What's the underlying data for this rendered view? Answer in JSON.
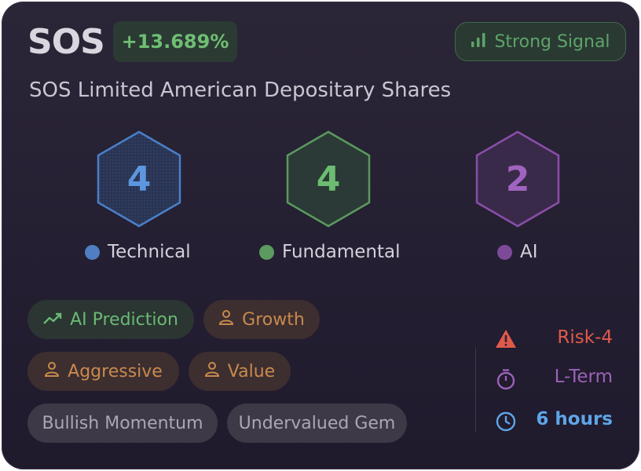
{
  "header": {
    "ticker": "SOS",
    "change": "+13.689%",
    "signal_label": "Strong Signal",
    "company_name": "SOS Limited American Depositary Shares"
  },
  "scores": [
    {
      "value": "4",
      "label": "Technical",
      "color": "#4a7fc9"
    },
    {
      "value": "4",
      "label": "Fundamental",
      "color": "#5a9a5e"
    },
    {
      "value": "2",
      "label": "AI",
      "color": "#8a4ea8"
    }
  ],
  "tags": [
    {
      "label": "AI Prediction",
      "icon": "trending-up-icon",
      "style": "green"
    },
    {
      "label": "Growth",
      "icon": "person-icon",
      "style": "orange"
    },
    {
      "label": "Aggressive",
      "icon": "person-icon",
      "style": "orange"
    },
    {
      "label": "Value",
      "icon": "person-icon",
      "style": "orange"
    },
    {
      "label": "Bullish Momentum",
      "style": "gray"
    },
    {
      "label": "Undervalued Gem",
      "style": "gray"
    }
  ],
  "side": {
    "risk": {
      "label": "Risk-4",
      "icon": "warning-icon",
      "color": "#e05a4a"
    },
    "term": {
      "label": "L-Term",
      "icon": "stopwatch-icon",
      "color": "#9b62b8"
    },
    "time": {
      "label": "6 hours",
      "icon": "clock-icon",
      "color": "#5ea5e8"
    }
  }
}
